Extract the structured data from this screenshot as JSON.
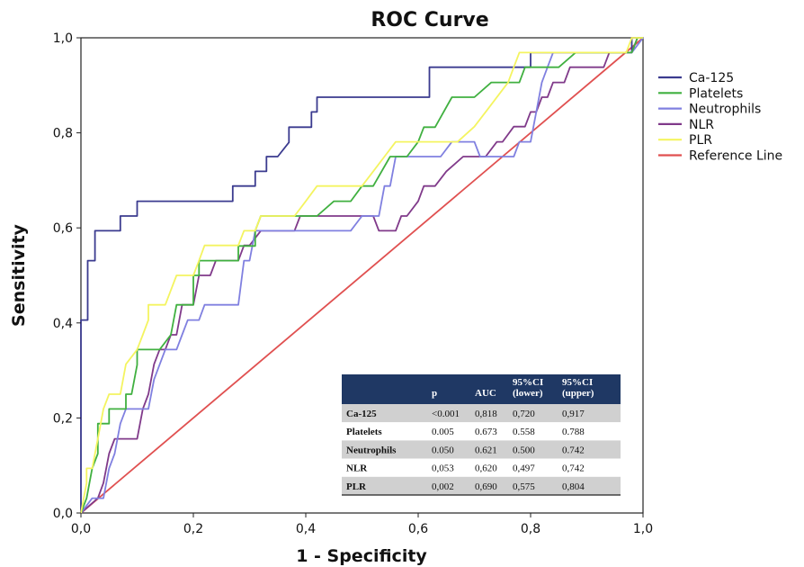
{
  "chart_data": {
    "type": "line",
    "title": "ROC Curve",
    "xlabel": "1 - Specificity",
    "ylabel": "Sensitivity",
    "xlim": [
      0,
      1
    ],
    "ylim": [
      0,
      1
    ],
    "ticks": [
      "0,0",
      "0,2",
      "0,4",
      "0,6",
      "0,8",
      "1,0"
    ],
    "tick_values": [
      0,
      0.2,
      0.4,
      0.6,
      0.8,
      1.0
    ],
    "grid": false,
    "legend_position": "right",
    "series": [
      {
        "name": "Ca-125",
        "color": "#3b3b8f",
        "points": [
          [
            0,
            0
          ],
          [
            0,
            0.406
          ],
          [
            0.012,
            0.406
          ],
          [
            0.012,
            0.531
          ],
          [
            0.025,
            0.531
          ],
          [
            0.025,
            0.594
          ],
          [
            0.07,
            0.594
          ],
          [
            0.07,
            0.625
          ],
          [
            0.1,
            0.625
          ],
          [
            0.1,
            0.656
          ],
          [
            0.27,
            0.656
          ],
          [
            0.27,
            0.688
          ],
          [
            0.31,
            0.688
          ],
          [
            0.31,
            0.719
          ],
          [
            0.33,
            0.719
          ],
          [
            0.33,
            0.75
          ],
          [
            0.35,
            0.75
          ],
          [
            0.37,
            0.78
          ],
          [
            0.37,
            0.812
          ],
          [
            0.41,
            0.812
          ],
          [
            0.41,
            0.844
          ],
          [
            0.42,
            0.844
          ],
          [
            0.42,
            0.875
          ],
          [
            0.62,
            0.875
          ],
          [
            0.62,
            0.938
          ],
          [
            0.8,
            0.938
          ],
          [
            0.8,
            0.969
          ],
          [
            0.98,
            0.969
          ],
          [
            0.98,
            1.0
          ],
          [
            1.0,
            1.0
          ]
        ]
      },
      {
        "name": "Platelets",
        "color": "#40b040",
        "points": [
          [
            0,
            0
          ],
          [
            0.01,
            0.031
          ],
          [
            0.02,
            0.094
          ],
          [
            0.03,
            0.125
          ],
          [
            0.03,
            0.188
          ],
          [
            0.05,
            0.188
          ],
          [
            0.05,
            0.219
          ],
          [
            0.08,
            0.219
          ],
          [
            0.08,
            0.25
          ],
          [
            0.09,
            0.25
          ],
          [
            0.1,
            0.312
          ],
          [
            0.1,
            0.344
          ],
          [
            0.14,
            0.344
          ],
          [
            0.16,
            0.375
          ],
          [
            0.17,
            0.438
          ],
          [
            0.2,
            0.438
          ],
          [
            0.2,
            0.5
          ],
          [
            0.21,
            0.5
          ],
          [
            0.21,
            0.531
          ],
          [
            0.28,
            0.531
          ],
          [
            0.28,
            0.562
          ],
          [
            0.31,
            0.562
          ],
          [
            0.31,
            0.594
          ],
          [
            0.32,
            0.625
          ],
          [
            0.42,
            0.625
          ],
          [
            0.45,
            0.656
          ],
          [
            0.48,
            0.656
          ],
          [
            0.5,
            0.688
          ],
          [
            0.52,
            0.688
          ],
          [
            0.55,
            0.75
          ],
          [
            0.58,
            0.75
          ],
          [
            0.6,
            0.781
          ],
          [
            0.61,
            0.812
          ],
          [
            0.63,
            0.812
          ],
          [
            0.66,
            0.875
          ],
          [
            0.7,
            0.875
          ],
          [
            0.73,
            0.906
          ],
          [
            0.78,
            0.906
          ],
          [
            0.79,
            0.938
          ],
          [
            0.85,
            0.938
          ],
          [
            0.88,
            0.969
          ],
          [
            0.98,
            0.969
          ],
          [
            0.99,
            1.0
          ],
          [
            1.0,
            1.0
          ]
        ]
      },
      {
        "name": "Neutrophils",
        "color": "#8080e0",
        "points": [
          [
            0,
            0
          ],
          [
            0.02,
            0.031
          ],
          [
            0.04,
            0.031
          ],
          [
            0.05,
            0.094
          ],
          [
            0.06,
            0.125
          ],
          [
            0.07,
            0.188
          ],
          [
            0.08,
            0.219
          ],
          [
            0.12,
            0.219
          ],
          [
            0.13,
            0.281
          ],
          [
            0.15,
            0.344
          ],
          [
            0.17,
            0.344
          ],
          [
            0.18,
            0.375
          ],
          [
            0.19,
            0.406
          ],
          [
            0.21,
            0.406
          ],
          [
            0.22,
            0.438
          ],
          [
            0.28,
            0.438
          ],
          [
            0.29,
            0.531
          ],
          [
            0.3,
            0.531
          ],
          [
            0.31,
            0.594
          ],
          [
            0.48,
            0.594
          ],
          [
            0.5,
            0.625
          ],
          [
            0.53,
            0.625
          ],
          [
            0.54,
            0.688
          ],
          [
            0.55,
            0.688
          ],
          [
            0.56,
            0.75
          ],
          [
            0.64,
            0.75
          ],
          [
            0.66,
            0.781
          ],
          [
            0.7,
            0.781
          ],
          [
            0.71,
            0.75
          ],
          [
            0.77,
            0.75
          ],
          [
            0.78,
            0.781
          ],
          [
            0.8,
            0.781
          ],
          [
            0.82,
            0.906
          ],
          [
            0.83,
            0.938
          ],
          [
            0.84,
            0.969
          ],
          [
            0.98,
            0.969
          ],
          [
            1.0,
            1.0
          ]
        ]
      },
      {
        "name": "NLR",
        "color": "#803a8a",
        "points": [
          [
            0,
            0
          ],
          [
            0.03,
            0.031
          ],
          [
            0.04,
            0.063
          ],
          [
            0.05,
            0.125
          ],
          [
            0.06,
            0.156
          ],
          [
            0.1,
            0.156
          ],
          [
            0.11,
            0.219
          ],
          [
            0.12,
            0.25
          ],
          [
            0.13,
            0.313
          ],
          [
            0.14,
            0.344
          ],
          [
            0.15,
            0.344
          ],
          [
            0.16,
            0.375
          ],
          [
            0.17,
            0.375
          ],
          [
            0.18,
            0.438
          ],
          [
            0.2,
            0.438
          ],
          [
            0.21,
            0.5
          ],
          [
            0.23,
            0.5
          ],
          [
            0.24,
            0.531
          ],
          [
            0.28,
            0.531
          ],
          [
            0.29,
            0.563
          ],
          [
            0.3,
            0.563
          ],
          [
            0.32,
            0.594
          ],
          [
            0.38,
            0.594
          ],
          [
            0.39,
            0.625
          ],
          [
            0.52,
            0.625
          ],
          [
            0.53,
            0.594
          ],
          [
            0.56,
            0.594
          ],
          [
            0.57,
            0.625
          ],
          [
            0.58,
            0.625
          ],
          [
            0.6,
            0.656
          ],
          [
            0.61,
            0.688
          ],
          [
            0.63,
            0.688
          ],
          [
            0.65,
            0.719
          ],
          [
            0.68,
            0.75
          ],
          [
            0.72,
            0.75
          ],
          [
            0.74,
            0.781
          ],
          [
            0.75,
            0.781
          ],
          [
            0.77,
            0.813
          ],
          [
            0.79,
            0.813
          ],
          [
            0.8,
            0.844
          ],
          [
            0.81,
            0.844
          ],
          [
            0.82,
            0.875
          ],
          [
            0.83,
            0.875
          ],
          [
            0.84,
            0.906
          ],
          [
            0.86,
            0.906
          ],
          [
            0.87,
            0.938
          ],
          [
            0.93,
            0.938
          ],
          [
            0.94,
            0.969
          ],
          [
            0.98,
            0.969
          ],
          [
            0.99,
            1.0
          ],
          [
            1.0,
            1.0
          ]
        ]
      },
      {
        "name": "PLR",
        "color": "#f4f460",
        "points": [
          [
            0,
            0
          ],
          [
            0.01,
            0.063
          ],
          [
            0.01,
            0.094
          ],
          [
            0.02,
            0.094
          ],
          [
            0.03,
            0.156
          ],
          [
            0.04,
            0.219
          ],
          [
            0.05,
            0.25
          ],
          [
            0.07,
            0.25
          ],
          [
            0.08,
            0.313
          ],
          [
            0.1,
            0.344
          ],
          [
            0.11,
            0.375
          ],
          [
            0.12,
            0.406
          ],
          [
            0.12,
            0.438
          ],
          [
            0.15,
            0.438
          ],
          [
            0.16,
            0.469
          ],
          [
            0.17,
            0.5
          ],
          [
            0.2,
            0.5
          ],
          [
            0.21,
            0.531
          ],
          [
            0.22,
            0.563
          ],
          [
            0.28,
            0.563
          ],
          [
            0.29,
            0.594
          ],
          [
            0.31,
            0.594
          ],
          [
            0.32,
            0.625
          ],
          [
            0.38,
            0.625
          ],
          [
            0.4,
            0.656
          ],
          [
            0.42,
            0.688
          ],
          [
            0.5,
            0.688
          ],
          [
            0.52,
            0.719
          ],
          [
            0.54,
            0.75
          ],
          [
            0.56,
            0.781
          ],
          [
            0.67,
            0.781
          ],
          [
            0.7,
            0.813
          ],
          [
            0.72,
            0.844
          ],
          [
            0.76,
            0.906
          ],
          [
            0.77,
            0.938
          ],
          [
            0.78,
            0.969
          ],
          [
            0.97,
            0.969
          ],
          [
            0.98,
            1.0
          ],
          [
            1.0,
            1.0
          ]
        ]
      },
      {
        "name": "Reference Line",
        "color": "#e05050",
        "points": [
          [
            0,
            0
          ],
          [
            1,
            1
          ]
        ]
      }
    ],
    "table": {
      "header_color": "#1f3864",
      "row_shade": "#d0d0d0",
      "columns": [
        "",
        "p",
        "AUC",
        "95%CI (lower)",
        "95%CI (upper)"
      ],
      "column_lines": [
        [
          "",
          ""
        ],
        [
          "",
          "p"
        ],
        [
          "",
          "AUC"
        ],
        [
          "95%CI",
          "(lower)"
        ],
        [
          "95%CI",
          "(upper)"
        ]
      ],
      "rows": [
        [
          "Ca-125",
          "<0.001",
          "0,818",
          "0,720",
          "0,917"
        ],
        [
          "Platelets",
          "0.005",
          "0.673",
          "0.558",
          "0.788"
        ],
        [
          "Neutrophils",
          "0.050",
          "0.621",
          "0.500",
          "0.742"
        ],
        [
          "NLR",
          "0,053",
          "0,620",
          "0,497",
          "0,742"
        ],
        [
          "PLR",
          "0,002",
          "0,690",
          "0,575",
          "0,804"
        ]
      ]
    }
  }
}
